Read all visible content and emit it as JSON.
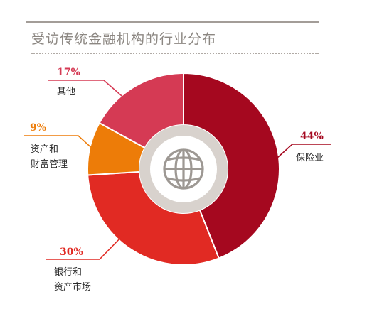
{
  "title": "受访传统金融机构的行业分布",
  "chart_data": {
    "type": "pie",
    "style": "donut",
    "title": "受访传统金融机构的行业分布",
    "slices": [
      {
        "label_lines": [
          "保险业"
        ],
        "value": 44,
        "value_label": "44%",
        "color": "#a5081f"
      },
      {
        "label_lines": [
          "银行和",
          "资产市场"
        ],
        "value": 30,
        "value_label": "30%",
        "color": "#e12a23"
      },
      {
        "label_lines": [
          "资产和",
          "财富管理"
        ],
        "value": 9,
        "value_label": "9%",
        "color": "#ed7c08"
      },
      {
        "label_lines": [
          "其他"
        ],
        "value": 17,
        "value_label": "17%",
        "color": "#d53a54"
      }
    ],
    "center_icon": "globe-icon",
    "legend": "none"
  },
  "colors": {
    "ring": "#ffffff",
    "inner_disc": "#d8d2cd",
    "globe": "#9d9893"
  }
}
